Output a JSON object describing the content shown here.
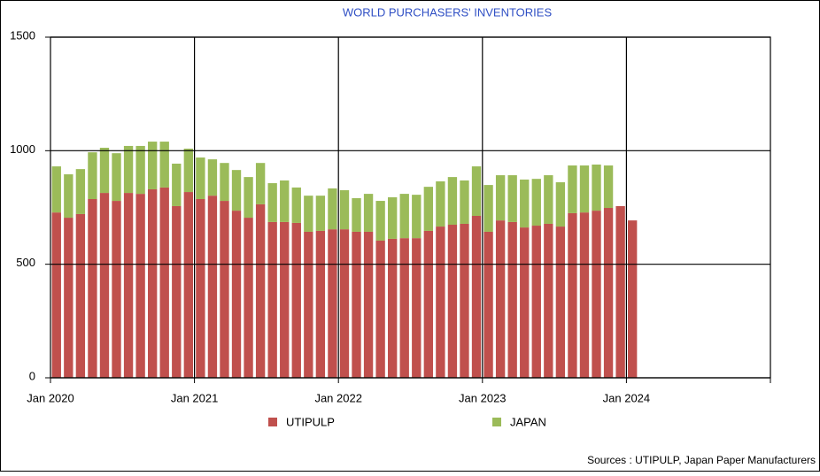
{
  "chart_data": {
    "type": "stacked_bar",
    "title": "WORLD PURCHASERS' INVENTORIES",
    "source": "Sources : UTIPULP, Japan Paper Manufacturers",
    "categories": [
      "Jan 2020",
      null,
      null,
      null,
      null,
      null,
      null,
      null,
      null,
      null,
      null,
      null,
      "Jan 2021",
      null,
      null,
      null,
      null,
      null,
      null,
      null,
      null,
      null,
      null,
      null,
      "Jan 2022",
      null,
      null,
      null,
      null,
      null,
      null,
      null,
      null,
      null,
      null,
      null,
      "Jan 2023",
      null,
      null,
      null,
      null,
      null,
      null,
      null,
      null,
      null,
      null,
      null,
      "Jan 2024",
      null,
      null,
      null,
      null,
      null,
      null,
      null,
      null,
      null,
      null,
      null
    ],
    "series": [
      {
        "name": "UTIPULP",
        "color": "#c0504d",
        "values": [
          728,
          705,
          721,
          787,
          814,
          779,
          814,
          810,
          830,
          838,
          756,
          818,
          787,
          802,
          779,
          736,
          705,
          764,
          686,
          686,
          682,
          643,
          647,
          654,
          654,
          643,
          643,
          604,
          612,
          615,
          615,
          647,
          666,
          674,
          678,
          713,
          643,
          693,
          686,
          662,
          670,
          678,
          666,
          725,
          728,
          736,
          748,
          756,
          693,
          null,
          null,
          null,
          null,
          null,
          null,
          null,
          null,
          null,
          null,
          null
        ]
      },
      {
        "name": "JAPAN",
        "color": "#9bbb59",
        "values": [
          203,
          191,
          198,
          206,
          199,
          210,
          207,
          211,
          210,
          202,
          187,
          191,
          183,
          160,
          167,
          179,
          179,
          182,
          171,
          183,
          156,
          159,
          155,
          180,
          172,
          148,
          167,
          175,
          183,
          195,
          191,
          194,
          199,
          210,
          191,
          218,
          206,
          199,
          206,
          211,
          206,
          214,
          195,
          210,
          207,
          203,
          187,
          null,
          null,
          null,
          null,
          null,
          null,
          null,
          null,
          null,
          null,
          null,
          null,
          null
        ]
      }
    ],
    "ylim": [
      0,
      1500
    ],
    "yticks": [
      0,
      500,
      1000,
      1500
    ],
    "grid": true
  }
}
